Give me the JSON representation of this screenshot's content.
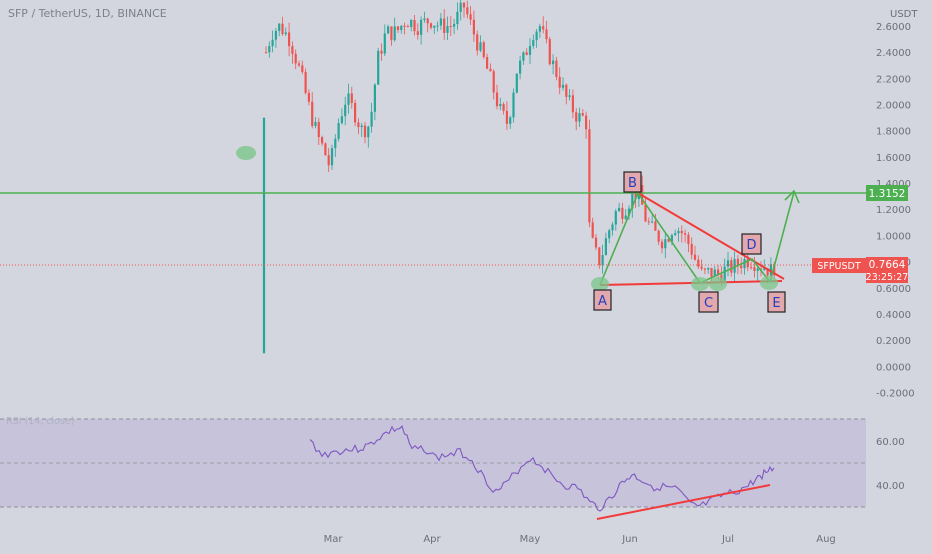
{
  "header": {
    "symbol_title": "SFP / TetherUS, 1D, BINANCE",
    "currency": "USDT"
  },
  "chart_data": {
    "type": "candlestick",
    "symbol": "SFPUSDT",
    "price_axis": {
      "ticks": [
        2.6,
        2.4,
        2.2,
        2.0,
        1.8,
        1.6,
        1.4,
        1.2,
        1.0,
        0.8,
        0.6,
        0.4,
        0.2,
        0.0,
        -0.2
      ],
      "tick_labels": [
        "2.6000",
        "2.4000",
        "2.2000",
        "2.0000",
        "1.8000",
        "1.6000",
        "1.4000",
        "1.2000",
        "1.0000",
        "0.8000",
        "0.6000",
        "0.4000",
        "0.2000",
        "0.0000",
        "-0.2000"
      ]
    },
    "time_axis": {
      "labels": [
        "Mar",
        "Apr",
        "May",
        "Jun",
        "Jul",
        "Aug"
      ]
    },
    "current_price": {
      "label": "SFPUSDT",
      "value": "0.7664",
      "countdown": "23:25:27",
      "price": 0.7664
    },
    "target_level": {
      "value": "1.3152",
      "price": 1.3152
    },
    "pattern_points": [
      {
        "label": "A",
        "price": 0.62
      },
      {
        "label": "B",
        "price": 1.36
      },
      {
        "label": "C",
        "price": 0.62
      },
      {
        "label": "D",
        "price": 0.84
      },
      {
        "label": "E",
        "price": 0.62
      }
    ],
    "rsi": {
      "title": "RSI (14, close)",
      "upper_band": 70,
      "mid_band": 50,
      "lower_band": 30,
      "tick_labels": [
        "60.00",
        "40.00"
      ]
    },
    "colors": {
      "up": "#26a69a",
      "down": "#ef5350",
      "target_line": "#4caf50",
      "pattern_red": "#f23a3a",
      "pattern_green": "#4caf50",
      "rsi_line": "#7e57c2",
      "rsi_band": "#c6c3da"
    }
  }
}
